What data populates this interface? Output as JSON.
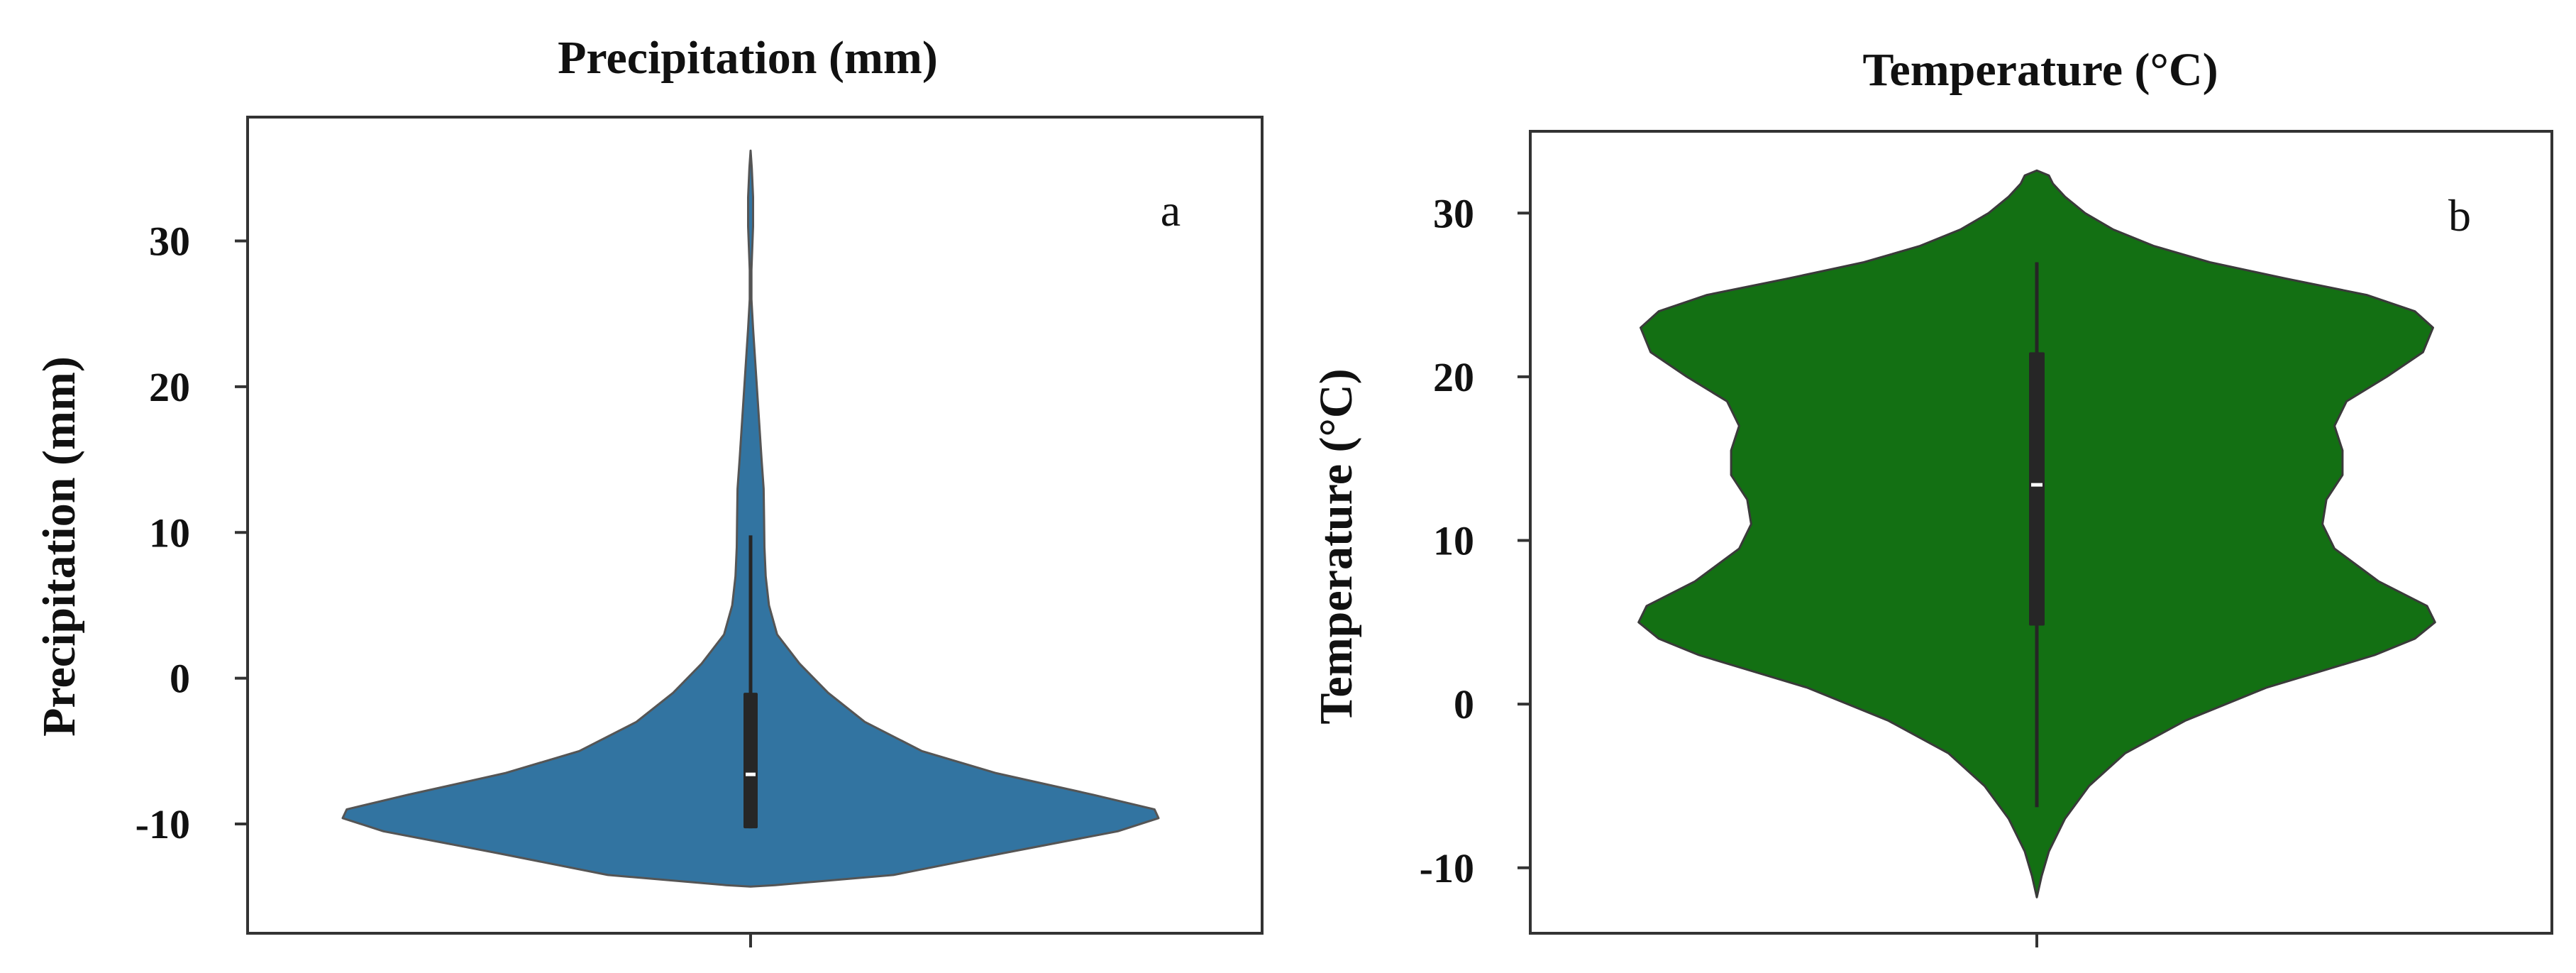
{
  "chart_data": [
    {
      "type": "violin",
      "panel_label": "a",
      "title": "Precipitation (mm)",
      "xlabel": "",
      "ylabel": "Precipitation (mm)",
      "ylim": [
        -17.5,
        38.5
      ],
      "yticks": [
        -10,
        0,
        10,
        20,
        30
      ],
      "ytick_labels": [
        "-10",
        "0",
        "10",
        "20",
        "30"
      ],
      "fill_color": "#3274a1",
      "outline_color": "#555555",
      "density_profile": [
        {
          "y": -14.3,
          "half_width": 0.0
        },
        {
          "y": -14.2,
          "half_width": 0.06
        },
        {
          "y": -13.5,
          "half_width": 0.35
        },
        {
          "y": -12.0,
          "half_width": 0.62
        },
        {
          "y": -10.5,
          "half_width": 0.9
        },
        {
          "y": -9.6,
          "half_width": 1.0
        },
        {
          "y": -9.0,
          "half_width": 0.99
        },
        {
          "y": -8.0,
          "half_width": 0.84
        },
        {
          "y": -6.5,
          "half_width": 0.6
        },
        {
          "y": -5.0,
          "half_width": 0.42
        },
        {
          "y": -3.0,
          "half_width": 0.28
        },
        {
          "y": -1.0,
          "half_width": 0.19
        },
        {
          "y": 1.0,
          "half_width": 0.12
        },
        {
          "y": 3.0,
          "half_width": 0.065
        },
        {
          "y": 5.0,
          "half_width": 0.045
        },
        {
          "y": 7.0,
          "half_width": 0.037
        },
        {
          "y": 9.0,
          "half_width": 0.034
        },
        {
          "y": 11.0,
          "half_width": 0.033
        },
        {
          "y": 13.0,
          "half_width": 0.032
        },
        {
          "y": 15.0,
          "half_width": 0.027
        },
        {
          "y": 18.0,
          "half_width": 0.02
        },
        {
          "y": 21.0,
          "half_width": 0.013
        },
        {
          "y": 24.0,
          "half_width": 0.006
        },
        {
          "y": 26.0,
          "half_width": 0.002
        },
        {
          "y": 28.0,
          "half_width": 0.002
        },
        {
          "y": 31.0,
          "half_width": 0.006
        },
        {
          "y": 33.0,
          "half_width": 0.006
        },
        {
          "y": 35.0,
          "half_width": 0.003
        },
        {
          "y": 36.2,
          "half_width": 0.0
        }
      ],
      "box": {
        "q1": -10.3,
        "median": -6.6,
        "q3": -1.0,
        "whisker_low": -10.3,
        "whisker_high": 9.8
      }
    },
    {
      "type": "violin",
      "panel_label": "b",
      "title": "Temperature (°C)",
      "xlabel": "",
      "ylabel": "Temperature (°C)",
      "ylim": [
        -14,
        35
      ],
      "yticks": [
        -10,
        0,
        10,
        20,
        30
      ],
      "ytick_labels": [
        "-10",
        "0",
        "10",
        "20",
        "30"
      ],
      "fill_color": "#137013",
      "outline_color": "#3a3a3a",
      "density_profile": [
        {
          "y": -11.8,
          "half_width": 0.0
        },
        {
          "y": -10.5,
          "half_width": 0.012
        },
        {
          "y": -9.0,
          "half_width": 0.03
        },
        {
          "y": -7.0,
          "half_width": 0.07
        },
        {
          "y": -5.0,
          "half_width": 0.13
        },
        {
          "y": -3.0,
          "half_width": 0.22
        },
        {
          "y": -1.0,
          "half_width": 0.37
        },
        {
          "y": 1.0,
          "half_width": 0.57
        },
        {
          "y": 3.0,
          "half_width": 0.84
        },
        {
          "y": 4.0,
          "half_width": 0.94
        },
        {
          "y": 5.0,
          "half_width": 0.99
        },
        {
          "y": 6.0,
          "half_width": 0.97
        },
        {
          "y": 7.5,
          "half_width": 0.85
        },
        {
          "y": 9.5,
          "half_width": 0.74
        },
        {
          "y": 11.0,
          "half_width": 0.71
        },
        {
          "y": 12.5,
          "half_width": 0.72
        },
        {
          "y": 14.0,
          "half_width": 0.76
        },
        {
          "y": 15.5,
          "half_width": 0.76
        },
        {
          "y": 17.0,
          "half_width": 0.74
        },
        {
          "y": 18.5,
          "half_width": 0.77
        },
        {
          "y": 20.0,
          "half_width": 0.87
        },
        {
          "y": 21.5,
          "half_width": 0.96
        },
        {
          "y": 23.0,
          "half_width": 0.985
        },
        {
          "y": 24.0,
          "half_width": 0.94
        },
        {
          "y": 25.0,
          "half_width": 0.82
        },
        {
          "y": 26.0,
          "half_width": 0.62
        },
        {
          "y": 27.0,
          "half_width": 0.43
        },
        {
          "y": 28.0,
          "half_width": 0.29
        },
        {
          "y": 29.0,
          "half_width": 0.19
        },
        {
          "y": 30.0,
          "half_width": 0.12
        },
        {
          "y": 31.0,
          "half_width": 0.07
        },
        {
          "y": 31.8,
          "half_width": 0.04
        },
        {
          "y": 32.3,
          "half_width": 0.03
        },
        {
          "y": 32.6,
          "half_width": 0.0
        }
      ],
      "box": {
        "q1": 4.8,
        "median": 13.4,
        "q3": 21.5,
        "whisker_low": -6.3,
        "whisker_high": 27.0
      }
    }
  ]
}
